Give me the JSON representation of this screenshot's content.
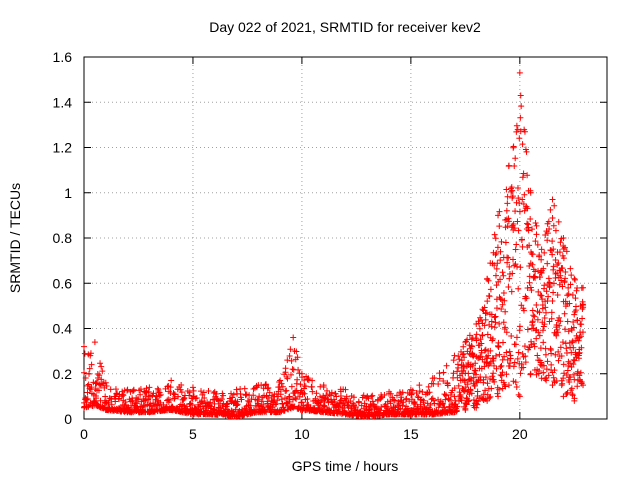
{
  "chart_data": {
    "type": "scatter",
    "title": "Day 022 of 2021, SRMTID for receiver kev2",
    "xlabel": "GPS time / hours",
    "ylabel": "SRMTID / TECUs",
    "xlim": [
      0,
      24
    ],
    "ylim": [
      0,
      1.6
    ],
    "x_ticks": [
      0,
      5,
      10,
      15,
      20
    ],
    "x_tick_labels": [
      "0",
      "5",
      "10",
      "15",
      "20"
    ],
    "y_ticks": [
      0,
      0.2,
      0.4,
      0.6,
      0.8,
      1.0,
      1.2,
      1.4,
      1.6
    ],
    "y_tick_labels": [
      "0",
      "0.2",
      "0.4",
      "0.6",
      "0.8",
      "1",
      "1.2",
      "1.4",
      "1.6"
    ],
    "grid": true,
    "marker": "plus",
    "series": [
      {
        "name": "SRMTID",
        "color": "#ff0000",
        "envelope": [
          {
            "x": 0.0,
            "low": 0.05,
            "high": 0.32
          },
          {
            "x": 0.5,
            "low": 0.06,
            "high": 0.34
          },
          {
            "x": 1.0,
            "low": 0.04,
            "high": 0.16
          },
          {
            "x": 2.0,
            "low": 0.03,
            "high": 0.13
          },
          {
            "x": 3.0,
            "low": 0.03,
            "high": 0.14
          },
          {
            "x": 4.0,
            "low": 0.04,
            "high": 0.17
          },
          {
            "x": 5.0,
            "low": 0.02,
            "high": 0.14
          },
          {
            "x": 6.0,
            "low": 0.02,
            "high": 0.12
          },
          {
            "x": 7.0,
            "low": 0.01,
            "high": 0.13
          },
          {
            "x": 8.0,
            "low": 0.03,
            "high": 0.15
          },
          {
            "x": 9.0,
            "low": 0.03,
            "high": 0.17
          },
          {
            "x": 9.6,
            "low": 0.05,
            "high": 0.36
          },
          {
            "x": 10.0,
            "low": 0.04,
            "high": 0.2
          },
          {
            "x": 11.0,
            "low": 0.03,
            "high": 0.15
          },
          {
            "x": 12.0,
            "low": 0.02,
            "high": 0.13
          },
          {
            "x": 13.0,
            "low": 0.01,
            "high": 0.1
          },
          {
            "x": 14.0,
            "low": 0.02,
            "high": 0.12
          },
          {
            "x": 15.0,
            "low": 0.02,
            "high": 0.13
          },
          {
            "x": 16.0,
            "low": 0.02,
            "high": 0.18
          },
          {
            "x": 17.0,
            "low": 0.03,
            "high": 0.28
          },
          {
            "x": 17.5,
            "low": 0.04,
            "high": 0.34
          },
          {
            "x": 18.0,
            "low": 0.05,
            "high": 0.42
          },
          {
            "x": 18.5,
            "low": 0.08,
            "high": 0.62
          },
          {
            "x": 19.0,
            "low": 0.1,
            "high": 0.9
          },
          {
            "x": 19.5,
            "low": 0.15,
            "high": 1.12
          },
          {
            "x": 20.0,
            "low": 0.1,
            "high": 1.53
          },
          {
            "x": 20.5,
            "low": 0.2,
            "high": 1.0
          },
          {
            "x": 21.0,
            "low": 0.18,
            "high": 0.75
          },
          {
            "x": 21.5,
            "low": 0.15,
            "high": 0.97
          },
          {
            "x": 22.0,
            "low": 0.1,
            "high": 0.8
          },
          {
            "x": 22.5,
            "low": 0.08,
            "high": 0.62
          },
          {
            "x": 22.9,
            "low": 0.15,
            "high": 0.58
          }
        ]
      }
    ]
  }
}
